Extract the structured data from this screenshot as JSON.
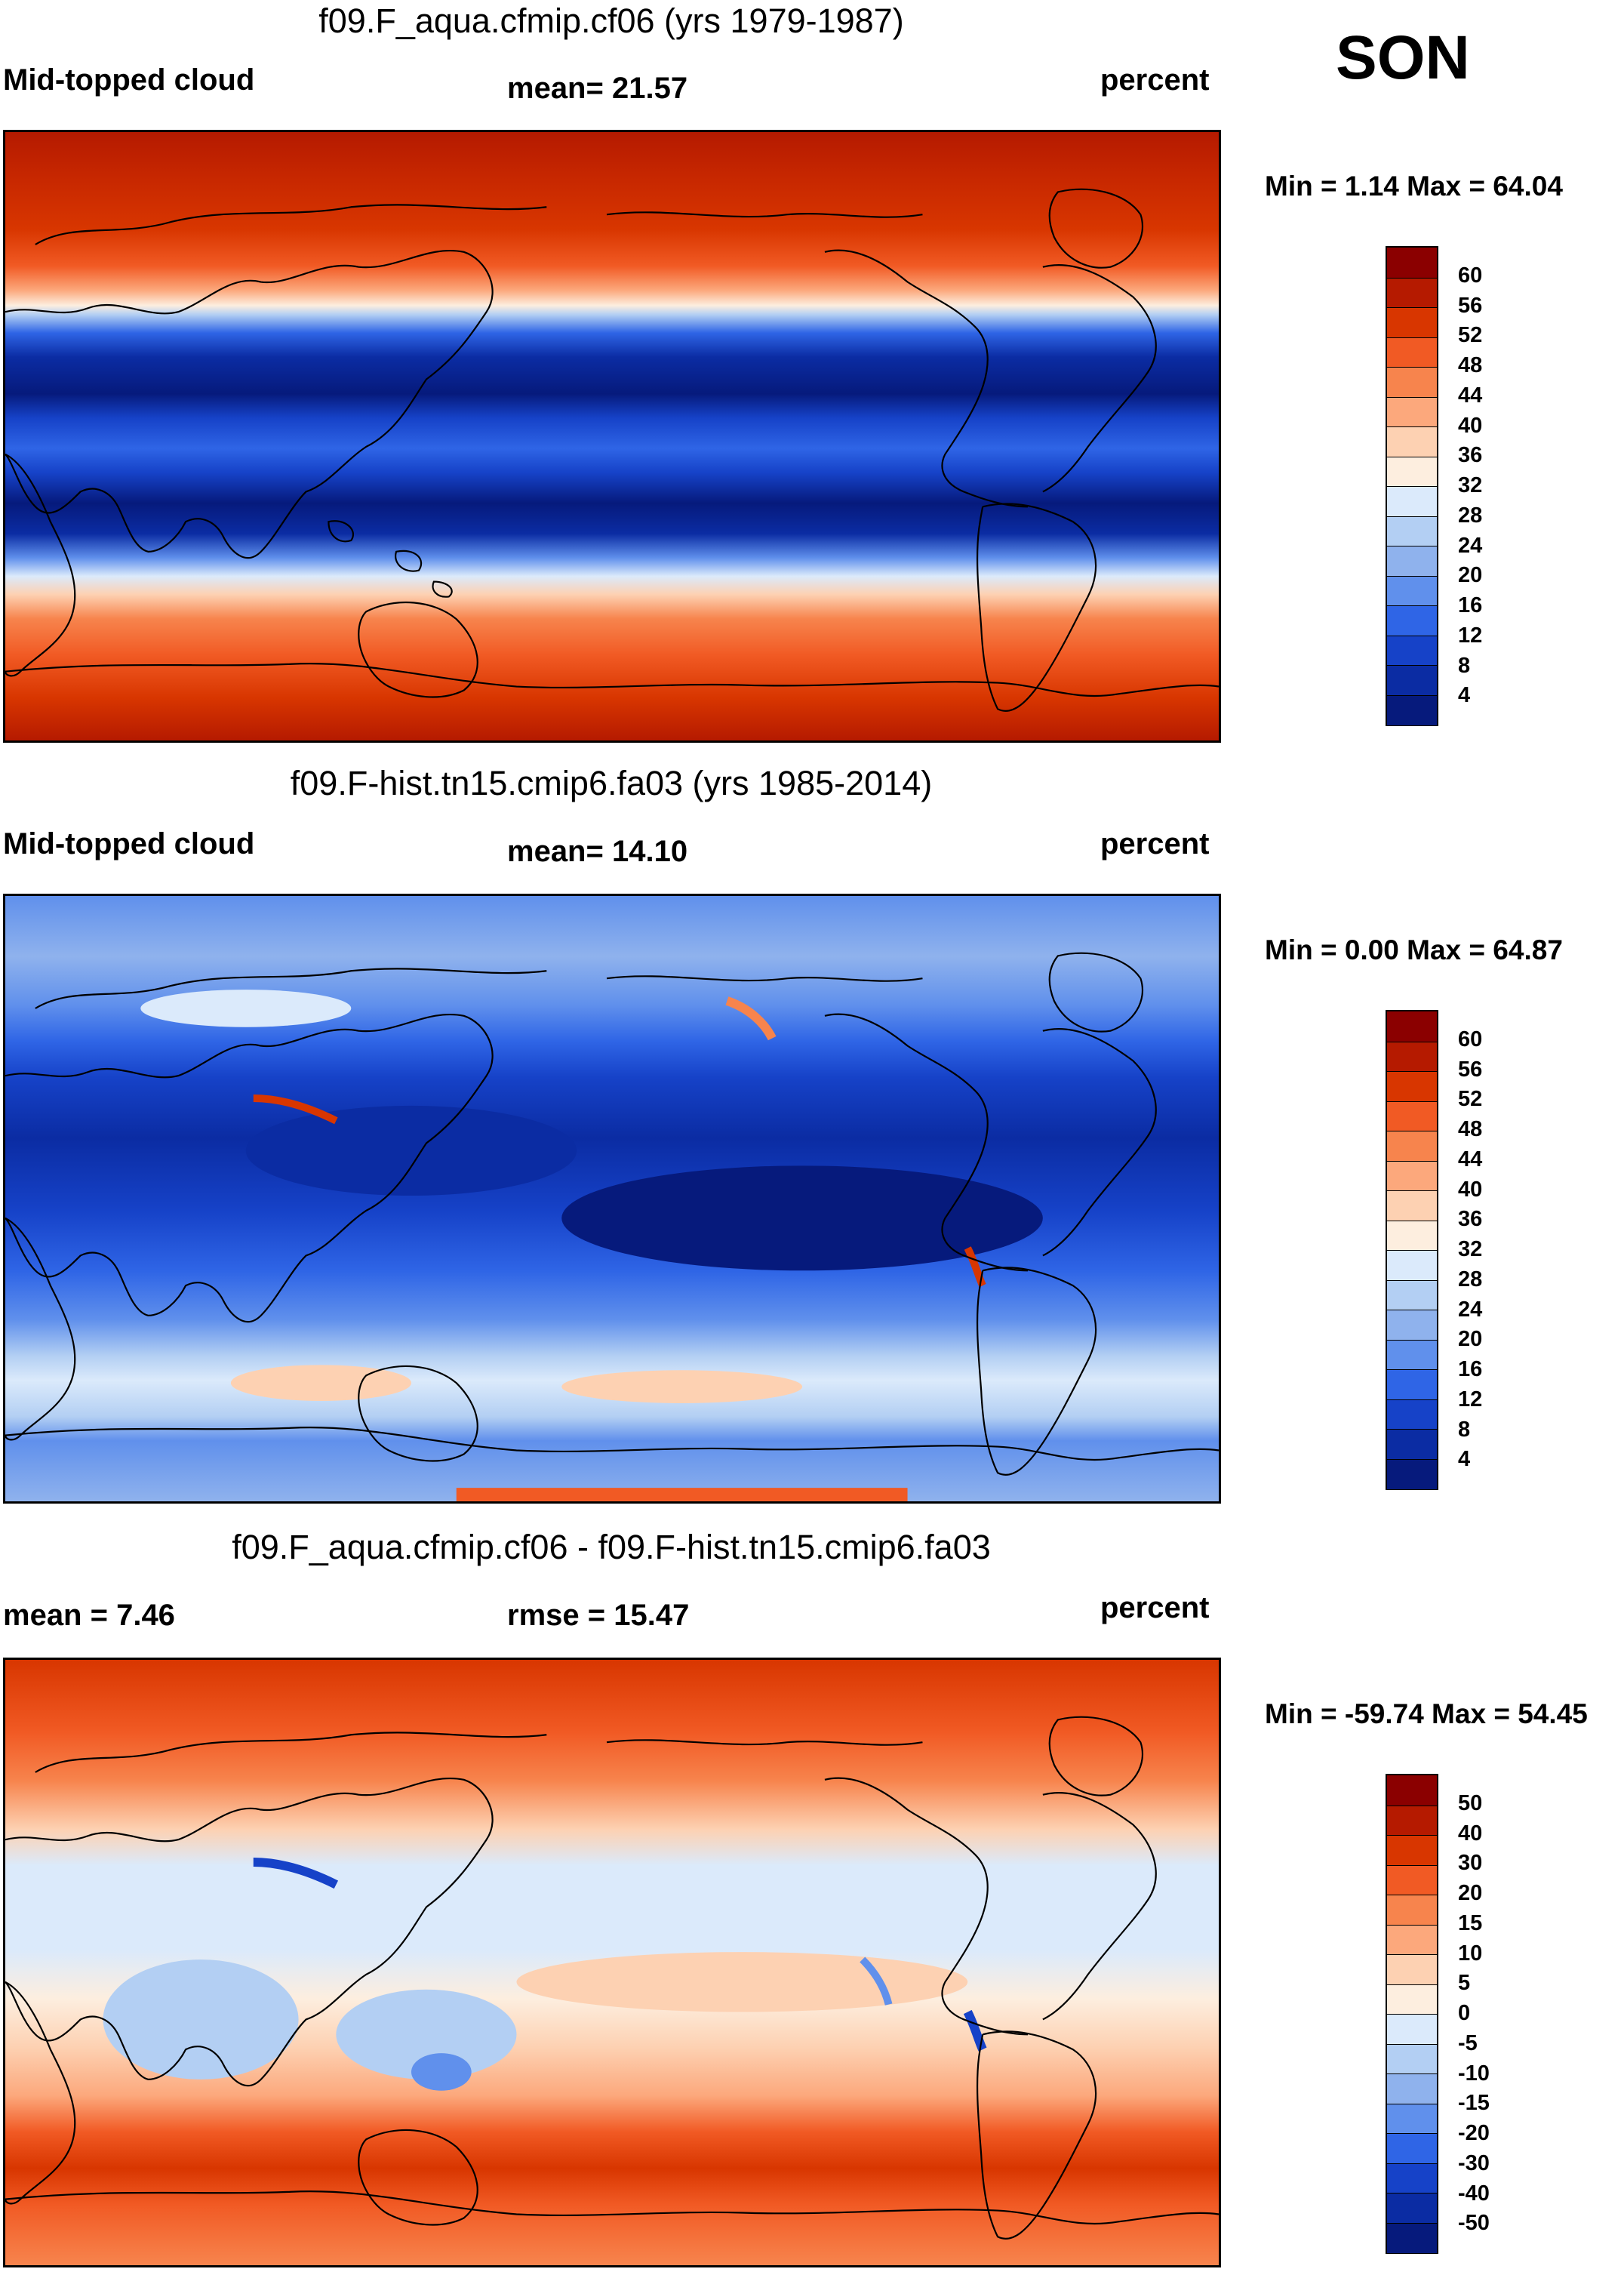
{
  "season": "SON",
  "panels": [
    {
      "id": "p1",
      "title": "f09.F_aqua.cfmip.cf06 (yrs 1979-1987)",
      "left_label": "Mid-topped cloud",
      "center_label": "mean=  21.57",
      "units": "percent",
      "minmax": "Min =   1.14 Max =  64.04",
      "colorbar_ticks": [
        "60",
        "56",
        "52",
        "48",
        "44",
        "40",
        "36",
        "32",
        "28",
        "24",
        "20",
        "16",
        "12",
        "8",
        "4"
      ],
      "colors": [
        "#8b0000",
        "#b51a00",
        "#d83600",
        "#f15a24",
        "#f7844d",
        "#fca87c",
        "#fdd1b2",
        "#fdeedf",
        "#dbeafb",
        "#b3cff3",
        "#8fb2ed",
        "#6090ec",
        "#2f65e6",
        "#1642c8",
        "#0b2ca3",
        "#061a7c"
      ]
    },
    {
      "id": "p2",
      "title": "f09.F-hist.tn15.cmip6.fa03 (yrs 1985-2014)",
      "left_label": "Mid-topped cloud",
      "center_label": "mean=  14.10",
      "units": "percent",
      "minmax": "Min =   0.00 Max =  64.87",
      "colorbar_ticks": [
        "60",
        "56",
        "52",
        "48",
        "44",
        "40",
        "36",
        "32",
        "28",
        "24",
        "20",
        "16",
        "12",
        "8",
        "4"
      ],
      "colors": [
        "#8b0000",
        "#b51a00",
        "#d83600",
        "#f15a24",
        "#f7844d",
        "#fca87c",
        "#fdd1b2",
        "#fdeedf",
        "#dbeafb",
        "#b3cff3",
        "#8fb2ed",
        "#6090ec",
        "#2f65e6",
        "#1642c8",
        "#0b2ca3",
        "#061a7c"
      ]
    },
    {
      "id": "p3",
      "title": "f09.F_aqua.cfmip.cf06 - f09.F-hist.tn15.cmip6.fa03",
      "left_label": "mean =   7.46",
      "center_label": "rmse =  15.47",
      "units": "percent",
      "minmax": "Min = -59.74 Max =  54.45",
      "colorbar_ticks": [
        "50",
        "40",
        "30",
        "20",
        "15",
        "10",
        "5",
        "0",
        "-5",
        "-10",
        "-15",
        "-20",
        "-30",
        "-40",
        "-50"
      ],
      "colors": [
        "#8b0000",
        "#b51a00",
        "#d83600",
        "#f15a24",
        "#f7844d",
        "#fca87c",
        "#fdd1b2",
        "#fdeedf",
        "#dbeafb",
        "#b3cff3",
        "#8fb2ed",
        "#6090ec",
        "#2f65e6",
        "#1642c8",
        "#0b2ca3",
        "#061a7c"
      ]
    }
  ]
}
